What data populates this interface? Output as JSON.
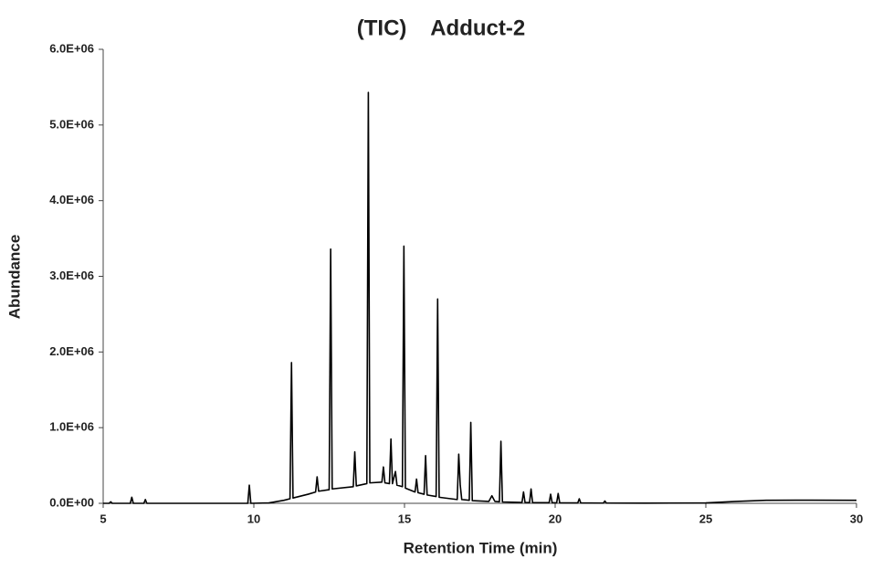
{
  "chart_data": {
    "type": "line",
    "title": "(TIC)    Adduct-2",
    "x_label": "Retention Time (min)",
    "y_label": "Abundance",
    "color": "#000000",
    "xlim": [
      5,
      30
    ],
    "xticks": [
      5,
      10,
      15,
      20,
      25,
      30
    ],
    "ylim": [
      0,
      6000000
    ],
    "yticks": [
      {
        "value": 0,
        "label": "0.0E+00"
      },
      {
        "value": 1000000,
        "label": "1.0E+06"
      },
      {
        "value": 2000000,
        "label": "2.0E+06"
      },
      {
        "value": 3000000,
        "label": "3.0E+06"
      },
      {
        "value": 4000000,
        "label": "4.0E+06"
      },
      {
        "value": 5000000,
        "label": "5.0E+06"
      },
      {
        "value": 6000000,
        "label": "6.0E+06"
      }
    ],
    "x": [
      5.0,
      5.2,
      5.25,
      5.3,
      5.9,
      5.95,
      6.0,
      6.35,
      6.4,
      6.45,
      9.8,
      9.85,
      9.9,
      10.5,
      11.0,
      11.2,
      11.25,
      11.3,
      11.8,
      12.05,
      12.1,
      12.15,
      12.5,
      12.55,
      12.6,
      13.3,
      13.35,
      13.4,
      13.75,
      13.8,
      13.85,
      14.25,
      14.3,
      14.35,
      14.5,
      14.55,
      14.6,
      14.7,
      14.75,
      14.93,
      14.98,
      15.03,
      15.35,
      15.4,
      15.45,
      15.65,
      15.7,
      15.75,
      16.05,
      16.1,
      16.15,
      16.75,
      16.8,
      16.85,
      16.9,
      17.15,
      17.2,
      17.25,
      17.8,
      17.9,
      18.0,
      18.15,
      18.2,
      18.25,
      18.9,
      18.95,
      19.0,
      19.15,
      19.2,
      19.25,
      19.8,
      19.85,
      19.9,
      20.05,
      20.1,
      20.15,
      20.75,
      20.8,
      20.85,
      21.6,
      21.65,
      21.7,
      23,
      25,
      26,
      27,
      28,
      30
    ],
    "values": [
      0,
      0,
      20000,
      0,
      0,
      80000,
      0,
      0,
      50000,
      0,
      0,
      240000,
      0,
      5000,
      40000,
      60000,
      1860000,
      70000,
      120000,
      150000,
      350000,
      160000,
      180000,
      3360000,
      190000,
      220000,
      680000,
      230000,
      260000,
      5430000,
      270000,
      280000,
      480000,
      270000,
      260000,
      850000,
      260000,
      420000,
      240000,
      220000,
      3400000,
      200000,
      150000,
      320000,
      140000,
      120000,
      630000,
      110000,
      90000,
      2700000,
      80000,
      50000,
      650000,
      240000,
      50000,
      40000,
      1070000,
      35000,
      25000,
      100000,
      25000,
      20000,
      820000,
      18000,
      12000,
      150000,
      12000,
      10000,
      190000,
      10000,
      8000,
      120000,
      8000,
      7000,
      130000,
      7000,
      5000,
      60000,
      5000,
      3000,
      30000,
      3000,
      2000,
      5000,
      25000,
      40000,
      42000,
      40000
    ]
  }
}
